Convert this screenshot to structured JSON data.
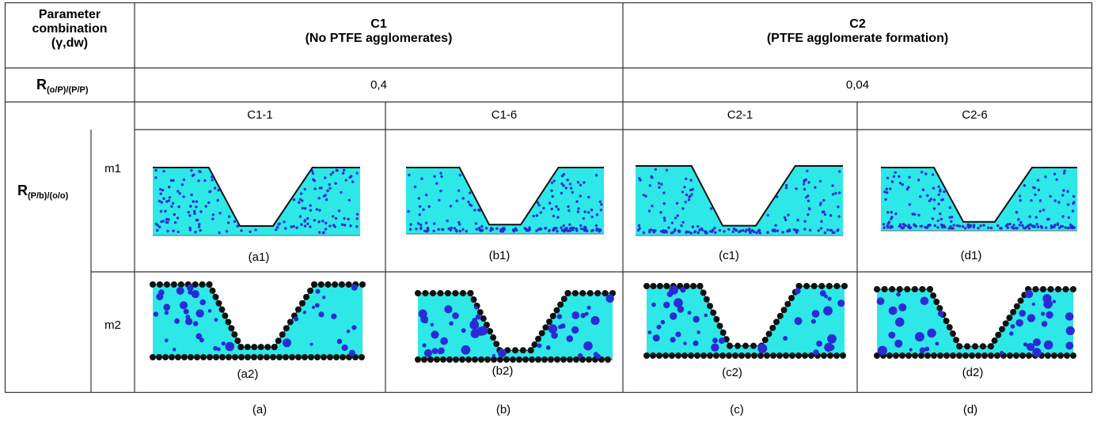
{
  "header": {
    "param_line1": "Parameter",
    "param_line2": "combination",
    "param_line3": "(γ,dw)",
    "c1_title": "C1",
    "c1_subtitle": "(No  PTFE agglomerates)",
    "c2_title": "C2",
    "c2_subtitle": "(PTFE agglomerate formation)"
  },
  "ratio_row": {
    "label_main": "R",
    "label_sub": "(o/P)/(P/P)",
    "c1_value": "0,4",
    "c2_value": "0,04"
  },
  "cases": [
    "C1-1",
    "C1-6",
    "C2-1",
    "C2-6"
  ],
  "row_label": {
    "main": "R",
    "sub": "(P/b)/(o/o)"
  },
  "rows": [
    {
      "name": "m1",
      "sublabels": [
        "(a1)",
        "(b1)",
        "(c1)",
        "(d1)"
      ]
    },
    {
      "name": "m2",
      "sublabels": [
        "(a2)",
        "(b2)",
        "(c2)",
        "(d2)"
      ]
    }
  ],
  "column_labels": [
    "(a)",
    "(b)",
    "(c)",
    "(d)"
  ],
  "colors": {
    "fluid": "#2ee8e8",
    "particle": "#2b2bd6",
    "wall": "#111111",
    "grid_line": "#333333"
  }
}
